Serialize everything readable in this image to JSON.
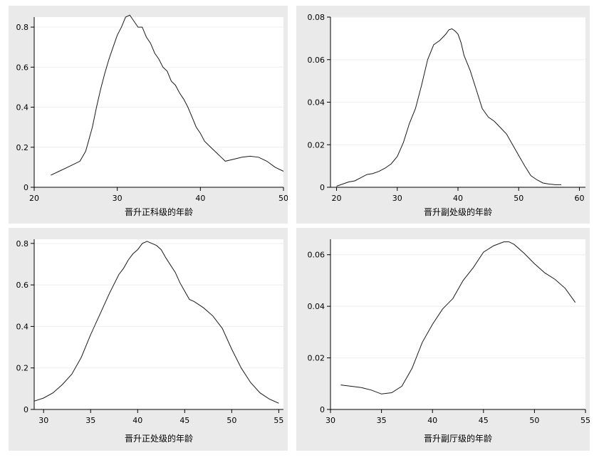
{
  "chart_data": [
    {
      "type": "line",
      "xlabel": "晋升正科级的年龄",
      "ylabel": "",
      "xlim": [
        20,
        50
      ],
      "ylim": [
        0,
        0.85
      ],
      "xticks": [
        20,
        30,
        40,
        50
      ],
      "yticks": [
        0,
        0.2,
        0.4,
        0.6,
        0.8
      ],
      "xtick_labels": [
        "20",
        "30",
        "40",
        "50"
      ],
      "ytick_labels": [
        "0",
        "0.2",
        "0.4",
        "0.6",
        "0.8"
      ],
      "grid": true,
      "series": [
        {
          "x": [
            22,
            23,
            24,
            25,
            25.5,
            26.2,
            27,
            27.5,
            28,
            28.5,
            29,
            29.5,
            30,
            30.5,
            31,
            31.5,
            32,
            32.5,
            33,
            33.5,
            34,
            34.5,
            35,
            35.5,
            36,
            36.5,
            37,
            37.5,
            38,
            38.5,
            39,
            39.5,
            40,
            40.5,
            41,
            41.5,
            42,
            42.5,
            43,
            44,
            45,
            46,
            47,
            48,
            49,
            50
          ],
          "y": [
            0.06,
            0.08,
            0.1,
            0.12,
            0.13,
            0.18,
            0.3,
            0.4,
            0.49,
            0.57,
            0.64,
            0.7,
            0.76,
            0.8,
            0.85,
            0.86,
            0.83,
            0.8,
            0.8,
            0.75,
            0.72,
            0.67,
            0.64,
            0.6,
            0.58,
            0.53,
            0.51,
            0.47,
            0.44,
            0.4,
            0.35,
            0.3,
            0.27,
            0.23,
            0.21,
            0.19,
            0.17,
            0.15,
            0.13,
            0.14,
            0.15,
            0.155,
            0.15,
            0.13,
            0.1,
            0.08
          ]
        }
      ]
    },
    {
      "type": "line",
      "xlabel": "晋升副处级的年龄",
      "ylabel": "",
      "xlim": [
        19,
        61
      ],
      "ylim": [
        0,
        0.08
      ],
      "xticks": [
        20,
        30,
        40,
        50,
        60
      ],
      "yticks": [
        0,
        0.02,
        0.04,
        0.06,
        0.08
      ],
      "xtick_labels": [
        "20",
        "30",
        "40",
        "50",
        "60"
      ],
      "ytick_labels": [
        "0",
        "0.02",
        "0.04",
        "0.06",
        "0.08"
      ],
      "grid": true,
      "series": [
        {
          "x": [
            20,
            21,
            22,
            23,
            24,
            25,
            26,
            27,
            28,
            29,
            30,
            31,
            32,
            33,
            34,
            35,
            36,
            37,
            38,
            38.5,
            39,
            39.5,
            40,
            40.5,
            41,
            42,
            43,
            44,
            45,
            46,
            47,
            48,
            49,
            50,
            51,
            52,
            53,
            54,
            55,
            56,
            57
          ],
          "y": [
            0.0005,
            0.0015,
            0.0025,
            0.003,
            0.0045,
            0.006,
            0.0065,
            0.0075,
            0.009,
            0.011,
            0.0145,
            0.021,
            0.03,
            0.037,
            0.048,
            0.06,
            0.067,
            0.069,
            0.072,
            0.074,
            0.0745,
            0.0735,
            0.072,
            0.068,
            0.062,
            0.055,
            0.046,
            0.037,
            0.033,
            0.031,
            0.028,
            0.025,
            0.02,
            0.015,
            0.01,
            0.0055,
            0.0035,
            0.002,
            0.0015,
            0.0012,
            0.0012
          ]
        }
      ]
    },
    {
      "type": "line",
      "xlabel": "晋升正处级的年龄",
      "ylabel": "",
      "xlim": [
        29,
        55.5
      ],
      "ylim": [
        0,
        0.82
      ],
      "xticks": [
        30,
        35,
        40,
        45,
        50,
        55
      ],
      "yticks": [
        0,
        0.2,
        0.4,
        0.6,
        0.8
      ],
      "xtick_labels": [
        "30",
        "35",
        "40",
        "45",
        "50",
        "55"
      ],
      "ytick_labels": [
        "0",
        "0.2",
        "0.4",
        "0.6",
        "0.8"
      ],
      "grid": true,
      "series": [
        {
          "x": [
            29,
            30,
            31,
            32,
            33,
            34,
            35,
            36,
            37,
            38,
            38.5,
            39,
            39.5,
            40,
            40.5,
            41,
            41.5,
            42,
            42.5,
            43,
            44,
            44.5,
            45,
            45.5,
            46,
            47,
            48,
            49,
            50,
            51,
            52,
            53,
            54,
            55
          ],
          "y": [
            0.04,
            0.055,
            0.08,
            0.12,
            0.17,
            0.25,
            0.36,
            0.46,
            0.56,
            0.65,
            0.68,
            0.72,
            0.75,
            0.77,
            0.8,
            0.81,
            0.8,
            0.79,
            0.77,
            0.73,
            0.66,
            0.61,
            0.57,
            0.53,
            0.52,
            0.49,
            0.45,
            0.39,
            0.29,
            0.2,
            0.13,
            0.08,
            0.05,
            0.03
          ]
        }
      ]
    },
    {
      "type": "line",
      "xlabel": "晋升副厅级的年龄",
      "ylabel": "",
      "xlim": [
        30,
        55
      ],
      "ylim": [
        0,
        0.066
      ],
      "xticks": [
        30,
        35,
        40,
        45,
        50,
        55
      ],
      "yticks": [
        0,
        0.02,
        0.04,
        0.06
      ],
      "xtick_labels": [
        "30",
        "35",
        "40",
        "45",
        "50",
        "55"
      ],
      "ytick_labels": [
        "0",
        "0.02",
        "0.04",
        "0.06"
      ],
      "grid": true,
      "series": [
        {
          "x": [
            31,
            32,
            33,
            34,
            35,
            36,
            37,
            38,
            39,
            40,
            41,
            42,
            43,
            44,
            45,
            46,
            47,
            47.5,
            48,
            49,
            50,
            51,
            52,
            53,
            54
          ],
          "y": [
            0.0095,
            0.009,
            0.0085,
            0.0075,
            0.006,
            0.0065,
            0.009,
            0.016,
            0.026,
            0.033,
            0.039,
            0.043,
            0.05,
            0.055,
            0.061,
            0.0635,
            0.065,
            0.065,
            0.064,
            0.0605,
            0.0565,
            0.053,
            0.0505,
            0.047,
            0.0415
          ]
        }
      ]
    }
  ]
}
